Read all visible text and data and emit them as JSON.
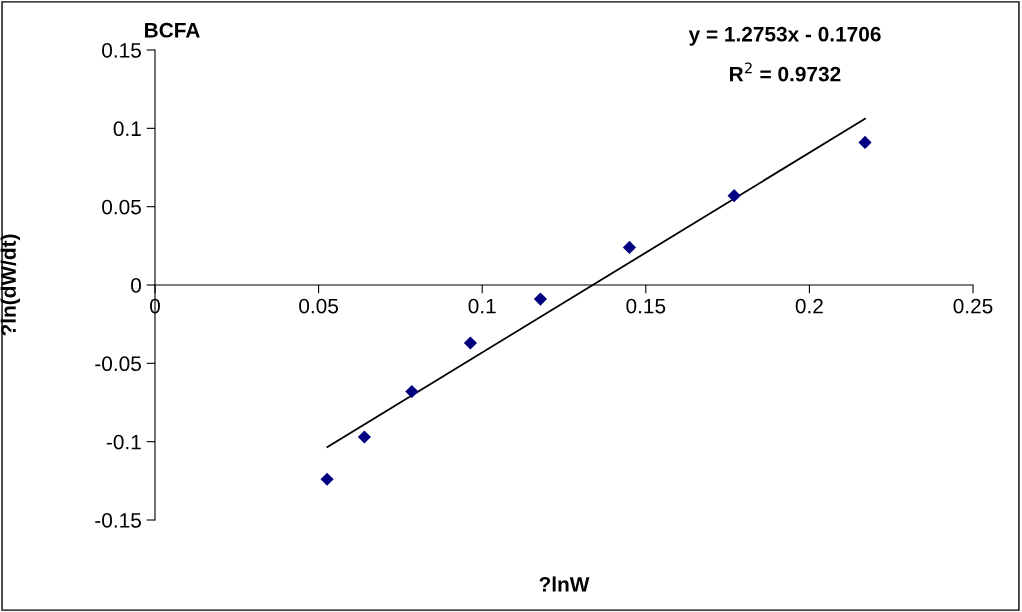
{
  "chart_data": {
    "type": "scatter",
    "title": "BCFA",
    "xlabel": "?lnW",
    "ylabel": "?ln(dW/dt)",
    "annotations": [
      "y = 1.2753x - 0.1706",
      "R$^{2}$ = 0.9732"
    ],
    "series": [
      {
        "marker": "diamond",
        "color": "#000080",
        "x": [
          0.0526,
          0.064,
          0.0785,
          0.0964,
          0.1178,
          0.145,
          0.177,
          0.217
        ],
        "values": [
          -0.124,
          -0.097,
          -0.068,
          -0.037,
          -0.009,
          0.024,
          0.057,
          0.091
        ]
      },
      {
        "type": "line",
        "color": "#000000",
        "x": [
          0.0527,
          0.217
        ],
        "values": [
          -0.1034,
          0.1061
        ]
      }
    ],
    "grid": false,
    "legend": false,
    "xlim": [
      0,
      0.25
    ],
    "xticks": [
      0,
      0.05,
      0.1,
      0.15,
      0.2,
      0.25
    ],
    "ylim": [
      -0.15,
      0.15
    ],
    "yticks": [
      -0.15,
      -0.1,
      -0.05,
      0,
      0.05,
      0.1,
      0.15
    ]
  }
}
